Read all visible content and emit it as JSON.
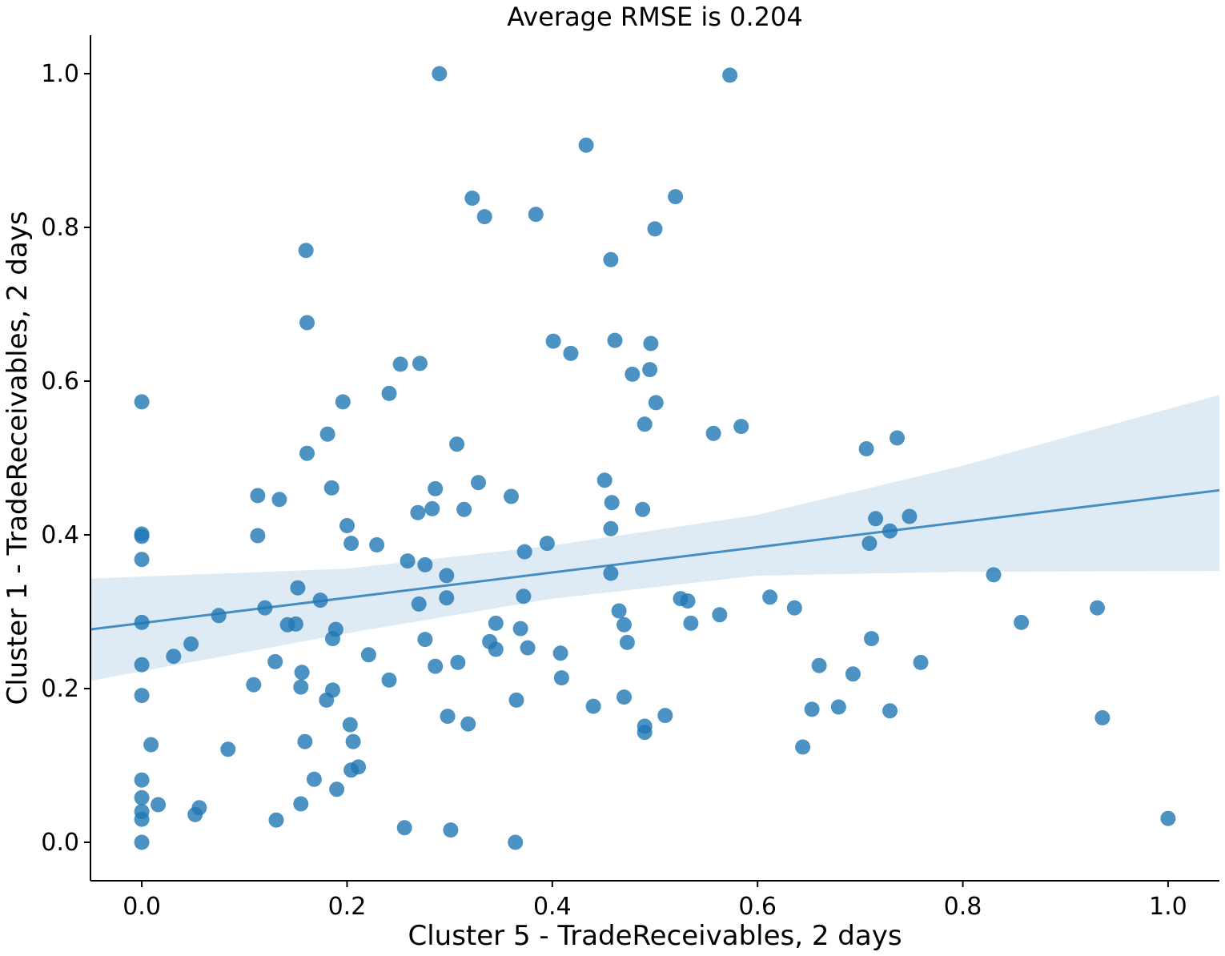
{
  "chart_data": {
    "type": "scatter",
    "title": "Average RMSE is 0.204",
    "xlabel": "Cluster 5 - TradeReceivables, 2 days",
    "ylabel": "Cluster 1 - TradeReceivables, 2 days",
    "xlim": [
      -0.05,
      1.05
    ],
    "ylim": [
      -0.05,
      1.05
    ],
    "xticks": [
      "0.0",
      "0.2",
      "0.4",
      "0.6",
      "0.8",
      "1.0"
    ],
    "yticks": [
      "0.0",
      "0.2",
      "0.4",
      "0.6",
      "0.8",
      "1.0"
    ],
    "grid": false,
    "colors": {
      "points": "#1f77b4",
      "line": "#1f77b4",
      "band": "#1f77b4"
    },
    "regression": {
      "x0": -0.05,
      "y0": 0.277,
      "x1": 1.05,
      "y1": 0.458
    },
    "confidence_band": {
      "x": [
        -0.05,
        0.2,
        0.4,
        0.6,
        0.8,
        1.05
      ],
      "lower": [
        0.21,
        0.272,
        0.317,
        0.347,
        0.352,
        0.353
      ],
      "upper": [
        0.343,
        0.356,
        0.386,
        0.426,
        0.49,
        0.582
      ]
    },
    "points": [
      [
        0.29,
        1.0
      ],
      [
        0.573,
        0.998
      ],
      [
        0.433,
        0.907
      ],
      [
        0.322,
        0.838
      ],
      [
        0.334,
        0.814
      ],
      [
        0.384,
        0.817
      ],
      [
        0.52,
        0.84
      ],
      [
        0.5,
        0.798
      ],
      [
        0.457,
        0.758
      ],
      [
        0.16,
        0.77
      ],
      [
        0.161,
        0.676
      ],
      [
        0.401,
        0.652
      ],
      [
        0.418,
        0.636
      ],
      [
        0.461,
        0.653
      ],
      [
        0.496,
        0.649
      ],
      [
        0.252,
        0.622
      ],
      [
        0.271,
        0.623
      ],
      [
        0.478,
        0.609
      ],
      [
        0.495,
        0.615
      ],
      [
        0.241,
        0.584
      ],
      [
        0.196,
        0.573
      ],
      [
        0.501,
        0.572
      ],
      [
        0.0,
        0.573
      ],
      [
        0.49,
        0.544
      ],
      [
        0.557,
        0.532
      ],
      [
        0.584,
        0.541
      ],
      [
        0.181,
        0.531
      ],
      [
        0.307,
        0.518
      ],
      [
        0.161,
        0.506
      ],
      [
        0.706,
        0.512
      ],
      [
        0.736,
        0.526
      ],
      [
        0.451,
        0.471
      ],
      [
        0.328,
        0.468
      ],
      [
        0.185,
        0.461
      ],
      [
        0.286,
        0.46
      ],
      [
        0.113,
        0.451
      ],
      [
        0.134,
        0.446
      ],
      [
        0.36,
        0.45
      ],
      [
        0.458,
        0.442
      ],
      [
        0.269,
        0.429
      ],
      [
        0.283,
        0.434
      ],
      [
        0.314,
        0.433
      ],
      [
        0.488,
        0.433
      ],
      [
        0.715,
        0.421
      ],
      [
        0.748,
        0.424
      ],
      [
        0.0,
        0.401
      ],
      [
        0.0,
        0.398
      ],
      [
        0.113,
        0.399
      ],
      [
        0.2,
        0.412
      ],
      [
        0.457,
        0.408
      ],
      [
        0.729,
        0.405
      ],
      [
        0.204,
        0.389
      ],
      [
        0.229,
        0.387
      ],
      [
        0.395,
        0.389
      ],
      [
        0.709,
        0.389
      ],
      [
        0.373,
        0.378
      ],
      [
        0.0,
        0.368
      ],
      [
        0.259,
        0.366
      ],
      [
        0.276,
        0.361
      ],
      [
        0.297,
        0.347
      ],
      [
        0.457,
        0.35
      ],
      [
        0.83,
        0.348
      ],
      [
        0.152,
        0.331
      ],
      [
        0.297,
        0.318
      ],
      [
        0.372,
        0.32
      ],
      [
        0.525,
        0.317
      ],
      [
        0.532,
        0.314
      ],
      [
        0.612,
        0.319
      ],
      [
        0.174,
        0.315
      ],
      [
        0.12,
        0.305
      ],
      [
        0.27,
        0.31
      ],
      [
        0.075,
        0.295
      ],
      [
        0.465,
        0.301
      ],
      [
        0.563,
        0.296
      ],
      [
        0.636,
        0.305
      ],
      [
        0.931,
        0.305
      ],
      [
        0.0,
        0.286
      ],
      [
        0.142,
        0.283
      ],
      [
        0.15,
        0.284
      ],
      [
        0.345,
        0.285
      ],
      [
        0.369,
        0.278
      ],
      [
        0.47,
        0.283
      ],
      [
        0.535,
        0.285
      ],
      [
        0.857,
        0.286
      ],
      [
        0.189,
        0.277
      ],
      [
        0.186,
        0.265
      ],
      [
        0.276,
        0.264
      ],
      [
        0.339,
        0.261
      ],
      [
        0.473,
        0.26
      ],
      [
        0.345,
        0.251
      ],
      [
        0.376,
        0.253
      ],
      [
        0.711,
        0.265
      ],
      [
        0.031,
        0.242
      ],
      [
        0.048,
        0.258
      ],
      [
        0.221,
        0.244
      ],
      [
        0.408,
        0.246
      ],
      [
        0.0,
        0.231
      ],
      [
        0.13,
        0.235
      ],
      [
        0.286,
        0.229
      ],
      [
        0.308,
        0.234
      ],
      [
        0.66,
        0.23
      ],
      [
        0.759,
        0.234
      ],
      [
        0.156,
        0.221
      ],
      [
        0.409,
        0.214
      ],
      [
        0.693,
        0.219
      ],
      [
        0.109,
        0.205
      ],
      [
        0.155,
        0.202
      ],
      [
        0.241,
        0.211
      ],
      [
        0.0,
        0.191
      ],
      [
        0.186,
        0.198
      ],
      [
        0.18,
        0.185
      ],
      [
        0.365,
        0.185
      ],
      [
        0.47,
        0.189
      ],
      [
        0.44,
        0.177
      ],
      [
        0.653,
        0.173
      ],
      [
        0.679,
        0.176
      ],
      [
        0.729,
        0.171
      ],
      [
        0.298,
        0.164
      ],
      [
        0.51,
        0.165
      ],
      [
        0.936,
        0.162
      ],
      [
        0.318,
        0.154
      ],
      [
        0.203,
        0.153
      ],
      [
        0.49,
        0.151
      ],
      [
        0.49,
        0.143
      ],
      [
        0.159,
        0.131
      ],
      [
        0.206,
        0.131
      ],
      [
        0.009,
        0.127
      ],
      [
        0.084,
        0.121
      ],
      [
        0.644,
        0.124
      ],
      [
        0.211,
        0.098
      ],
      [
        0.204,
        0.094
      ],
      [
        0.0,
        0.081
      ],
      [
        0.168,
        0.082
      ],
      [
        0.19,
        0.069
      ],
      [
        0.0,
        0.058
      ],
      [
        0.016,
        0.049
      ],
      [
        0.155,
        0.05
      ],
      [
        0.056,
        0.045
      ],
      [
        0.0,
        0.04
      ],
      [
        0.052,
        0.036
      ],
      [
        0.0,
        0.03
      ],
      [
        0.131,
        0.029
      ],
      [
        1.0,
        0.031
      ],
      [
        0.256,
        0.019
      ],
      [
        0.301,
        0.016
      ],
      [
        0.0,
        0.0
      ],
      [
        0.364,
        0.0
      ]
    ]
  }
}
